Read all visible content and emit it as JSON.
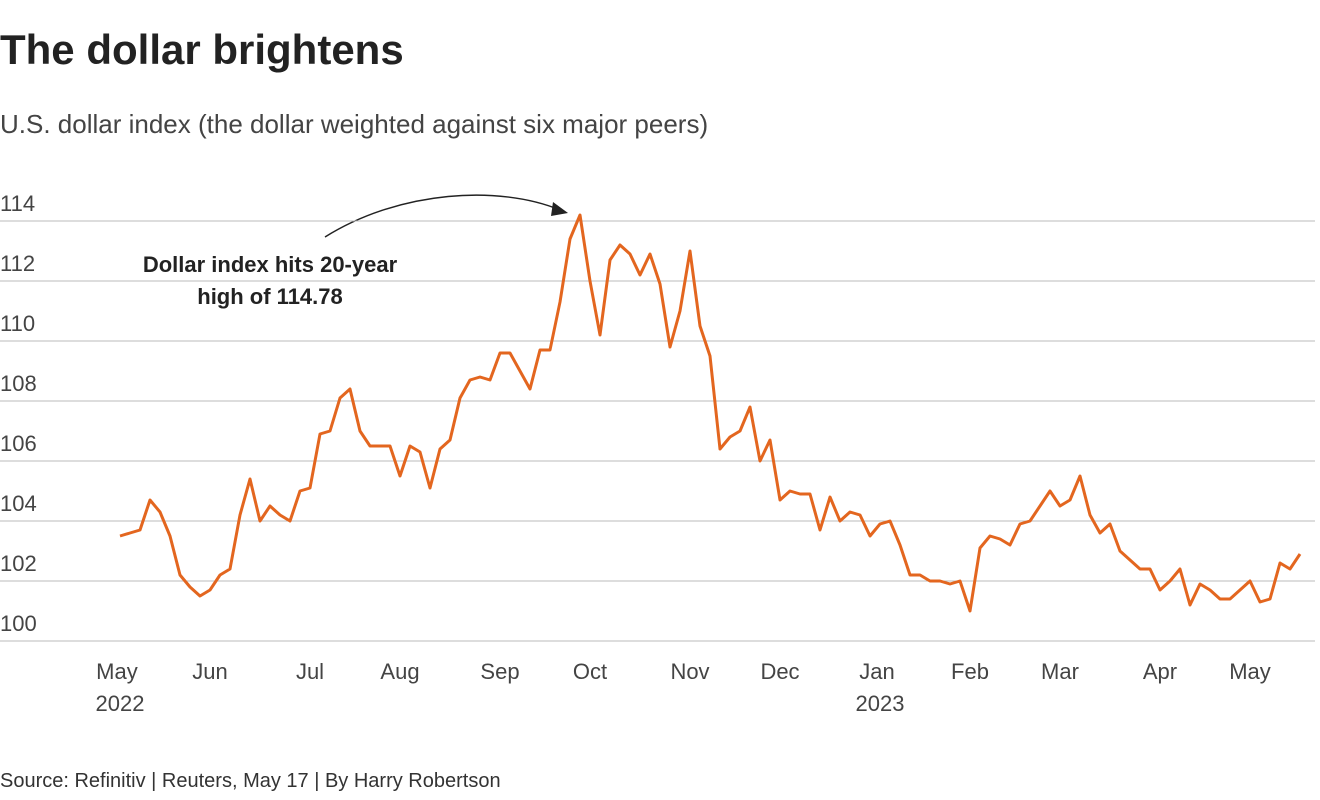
{
  "chart_data": {
    "type": "line",
    "title": "The dollar brightens",
    "subtitle": "U.S. dollar index (the dollar weighted against six major peers)",
    "source": "Source: Refinitiv | Reuters, May 17 | By Harry Robertson",
    "annotation": [
      "Dollar index hits 20-year",
      "high of 114.78"
    ],
    "categories": [
      "May 2022",
      null,
      null,
      null,
      null,
      null,
      null,
      null,
      null,
      "Jun",
      null,
      null,
      null,
      null,
      null,
      null,
      null,
      null,
      null,
      "Jul",
      null,
      null,
      null,
      null,
      null,
      null,
      null,
      null,
      "Aug",
      null,
      null,
      null,
      null,
      null,
      null,
      null,
      null,
      null,
      "Sep",
      null,
      null,
      null,
      null,
      null,
      null,
      null,
      null,
      "Oct",
      null,
      null,
      null,
      null,
      null,
      null,
      null,
      null,
      null,
      "Nov",
      null,
      null,
      null,
      null,
      null,
      null,
      null,
      null,
      "Dec",
      null,
      null,
      null,
      null,
      null,
      null,
      null,
      null,
      null,
      "Jan 2023",
      null,
      null,
      null,
      null,
      null,
      null,
      null,
      null,
      "Feb",
      null,
      null,
      null,
      null,
      null,
      null,
      null,
      null,
      "Mar",
      null,
      null,
      null,
      null,
      null,
      null,
      null,
      null,
      null,
      "Apr",
      null,
      null,
      null,
      null,
      null,
      null,
      null,
      null,
      "May",
      null,
      null,
      null,
      null,
      null
    ],
    "series": [
      {
        "name": "U.S. dollar index",
        "color": "#e3661f",
        "values": [
          103.5,
          103.6,
          103.7,
          104.7,
          104.3,
          103.5,
          102.2,
          101.8,
          101.5,
          101.7,
          102.2,
          102.4,
          104.2,
          105.4,
          104.0,
          104.5,
          104.2,
          104.0,
          105.0,
          105.1,
          106.9,
          107.0,
          108.1,
          108.4,
          107.0,
          106.5,
          106.5,
          106.5,
          105.5,
          106.5,
          106.3,
          105.1,
          106.4,
          106.7,
          108.1,
          108.7,
          108.8,
          108.7,
          109.6,
          109.6,
          109.0,
          108.4,
          109.7,
          109.7,
          111.3,
          113.4,
          114.2,
          112.0,
          110.2,
          112.7,
          113.2,
          112.9,
          112.2,
          112.9,
          111.9,
          109.8,
          111.0,
          113.0,
          110.5,
          109.5,
          106.4,
          106.8,
          107.0,
          107.8,
          106.0,
          106.7,
          104.7,
          105.0,
          104.9,
          104.9,
          103.7,
          104.8,
          104.0,
          104.3,
          104.2,
          103.5,
          103.9,
          104.0,
          103.2,
          102.2,
          102.2,
          102.0,
          102.0,
          101.9,
          102.0,
          101.0,
          103.1,
          103.5,
          103.4,
          103.2,
          103.9,
          104.0,
          104.5,
          105.0,
          104.5,
          104.7,
          105.5,
          104.2,
          103.6,
          103.9,
          103.0,
          102.7,
          102.4,
          102.4,
          101.7,
          102.0,
          102.4,
          101.2,
          101.9,
          101.7,
          101.4,
          101.4,
          101.7,
          102.0,
          101.3,
          101.4,
          102.6,
          102.4,
          102.9
        ]
      }
    ],
    "ylim": [
      100,
      114
    ],
    "yticks": [
      100,
      102,
      104,
      106,
      108,
      110,
      112,
      114
    ],
    "grid": true
  }
}
